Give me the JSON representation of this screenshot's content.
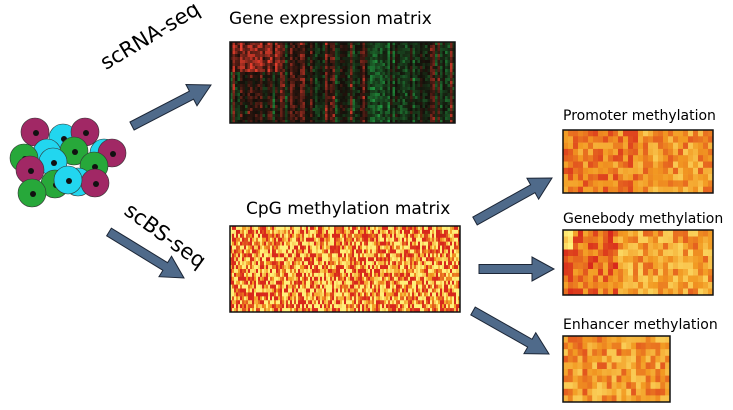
{
  "labels": {
    "gene_matrix_title": "Gene expression matrix",
    "cpg_matrix_title": "CpG methylation matrix",
    "promoter_title": "Promoter methylation",
    "genebody_title": "Genebody methylation",
    "enhancer_title": "Enhancer methylation",
    "scrna_arrow_label": "scRNA-seq",
    "scbs_arrow_label": "scBS-seq"
  },
  "colors": {
    "arrow": "#4f6a8a",
    "cell_green": "#27a83a",
    "cell_cyan": "#22d6ef",
    "cell_magenta": "#a12865",
    "nucleus": "#111111",
    "expr_red": "#d63a2a",
    "expr_green": "#1f8a3a",
    "meth_yellow": "#fff07a",
    "meth_orange": "#f29a22",
    "meth_red": "#d8281c"
  },
  "cells": [
    {
      "color": "magenta"
    },
    {
      "color": "cyan"
    },
    {
      "color": "magenta"
    },
    {
      "color": "cyan"
    },
    {
      "color": "green"
    },
    {
      "color": "cyan"
    },
    {
      "color": "green"
    },
    {
      "color": "magenta"
    },
    {
      "color": "cyan"
    },
    {
      "color": "green"
    },
    {
      "color": "cyan"
    },
    {
      "color": "magenta"
    },
    {
      "color": "green"
    },
    {
      "color": "magenta"
    },
    {
      "color": "green"
    },
    {
      "color": "cyan"
    }
  ]
}
